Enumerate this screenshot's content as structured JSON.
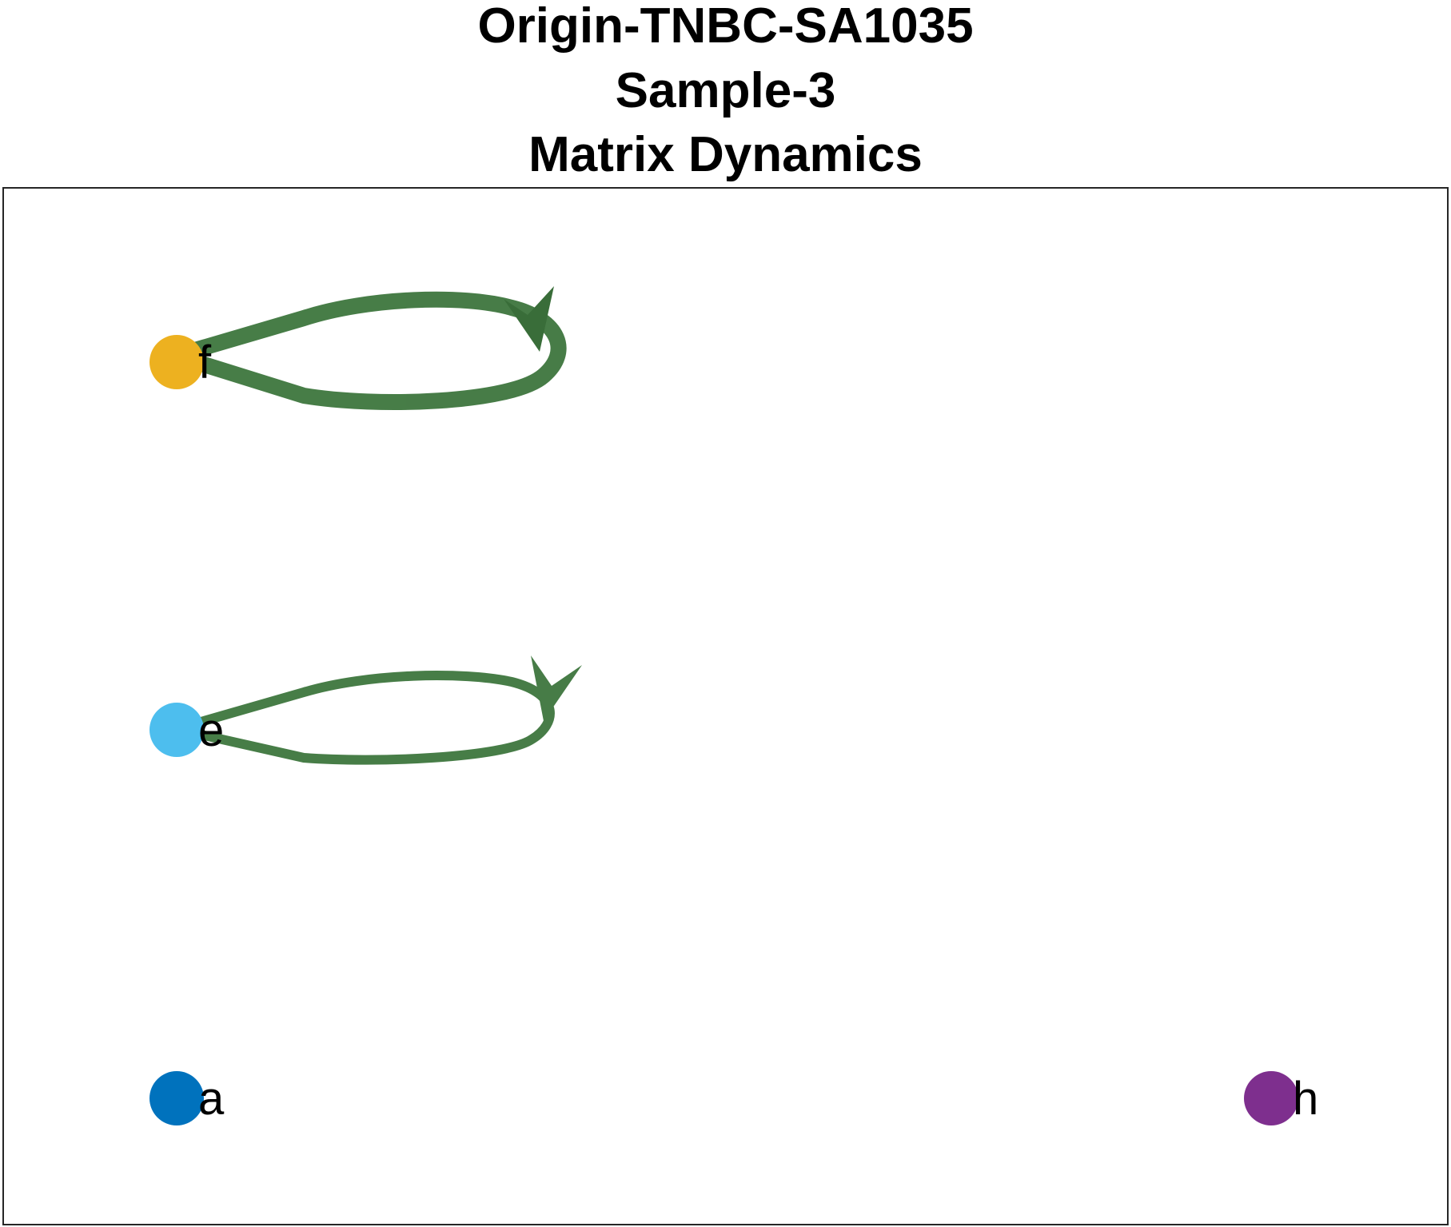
{
  "titles": [
    "Origin-TNBC-SA1035",
    "Sample-3",
    "Matrix Dynamics"
  ],
  "graph": {
    "nodes": [
      {
        "id": "f",
        "label": "f",
        "color": "#EDB120"
      },
      {
        "id": "e",
        "label": "e",
        "color": "#4DBEEE"
      },
      {
        "id": "a",
        "label": "a",
        "color": "#0072BD"
      },
      {
        "id": "h",
        "label": "h",
        "color": "#7E2F8E"
      }
    ],
    "edges": [
      {
        "source": "f",
        "target": "f",
        "type": "self-loop",
        "weight": "heavy",
        "color": "#2E6B2E"
      },
      {
        "source": "e",
        "target": "e",
        "type": "self-loop",
        "weight": "light",
        "color": "#2E6B2E"
      }
    ]
  }
}
